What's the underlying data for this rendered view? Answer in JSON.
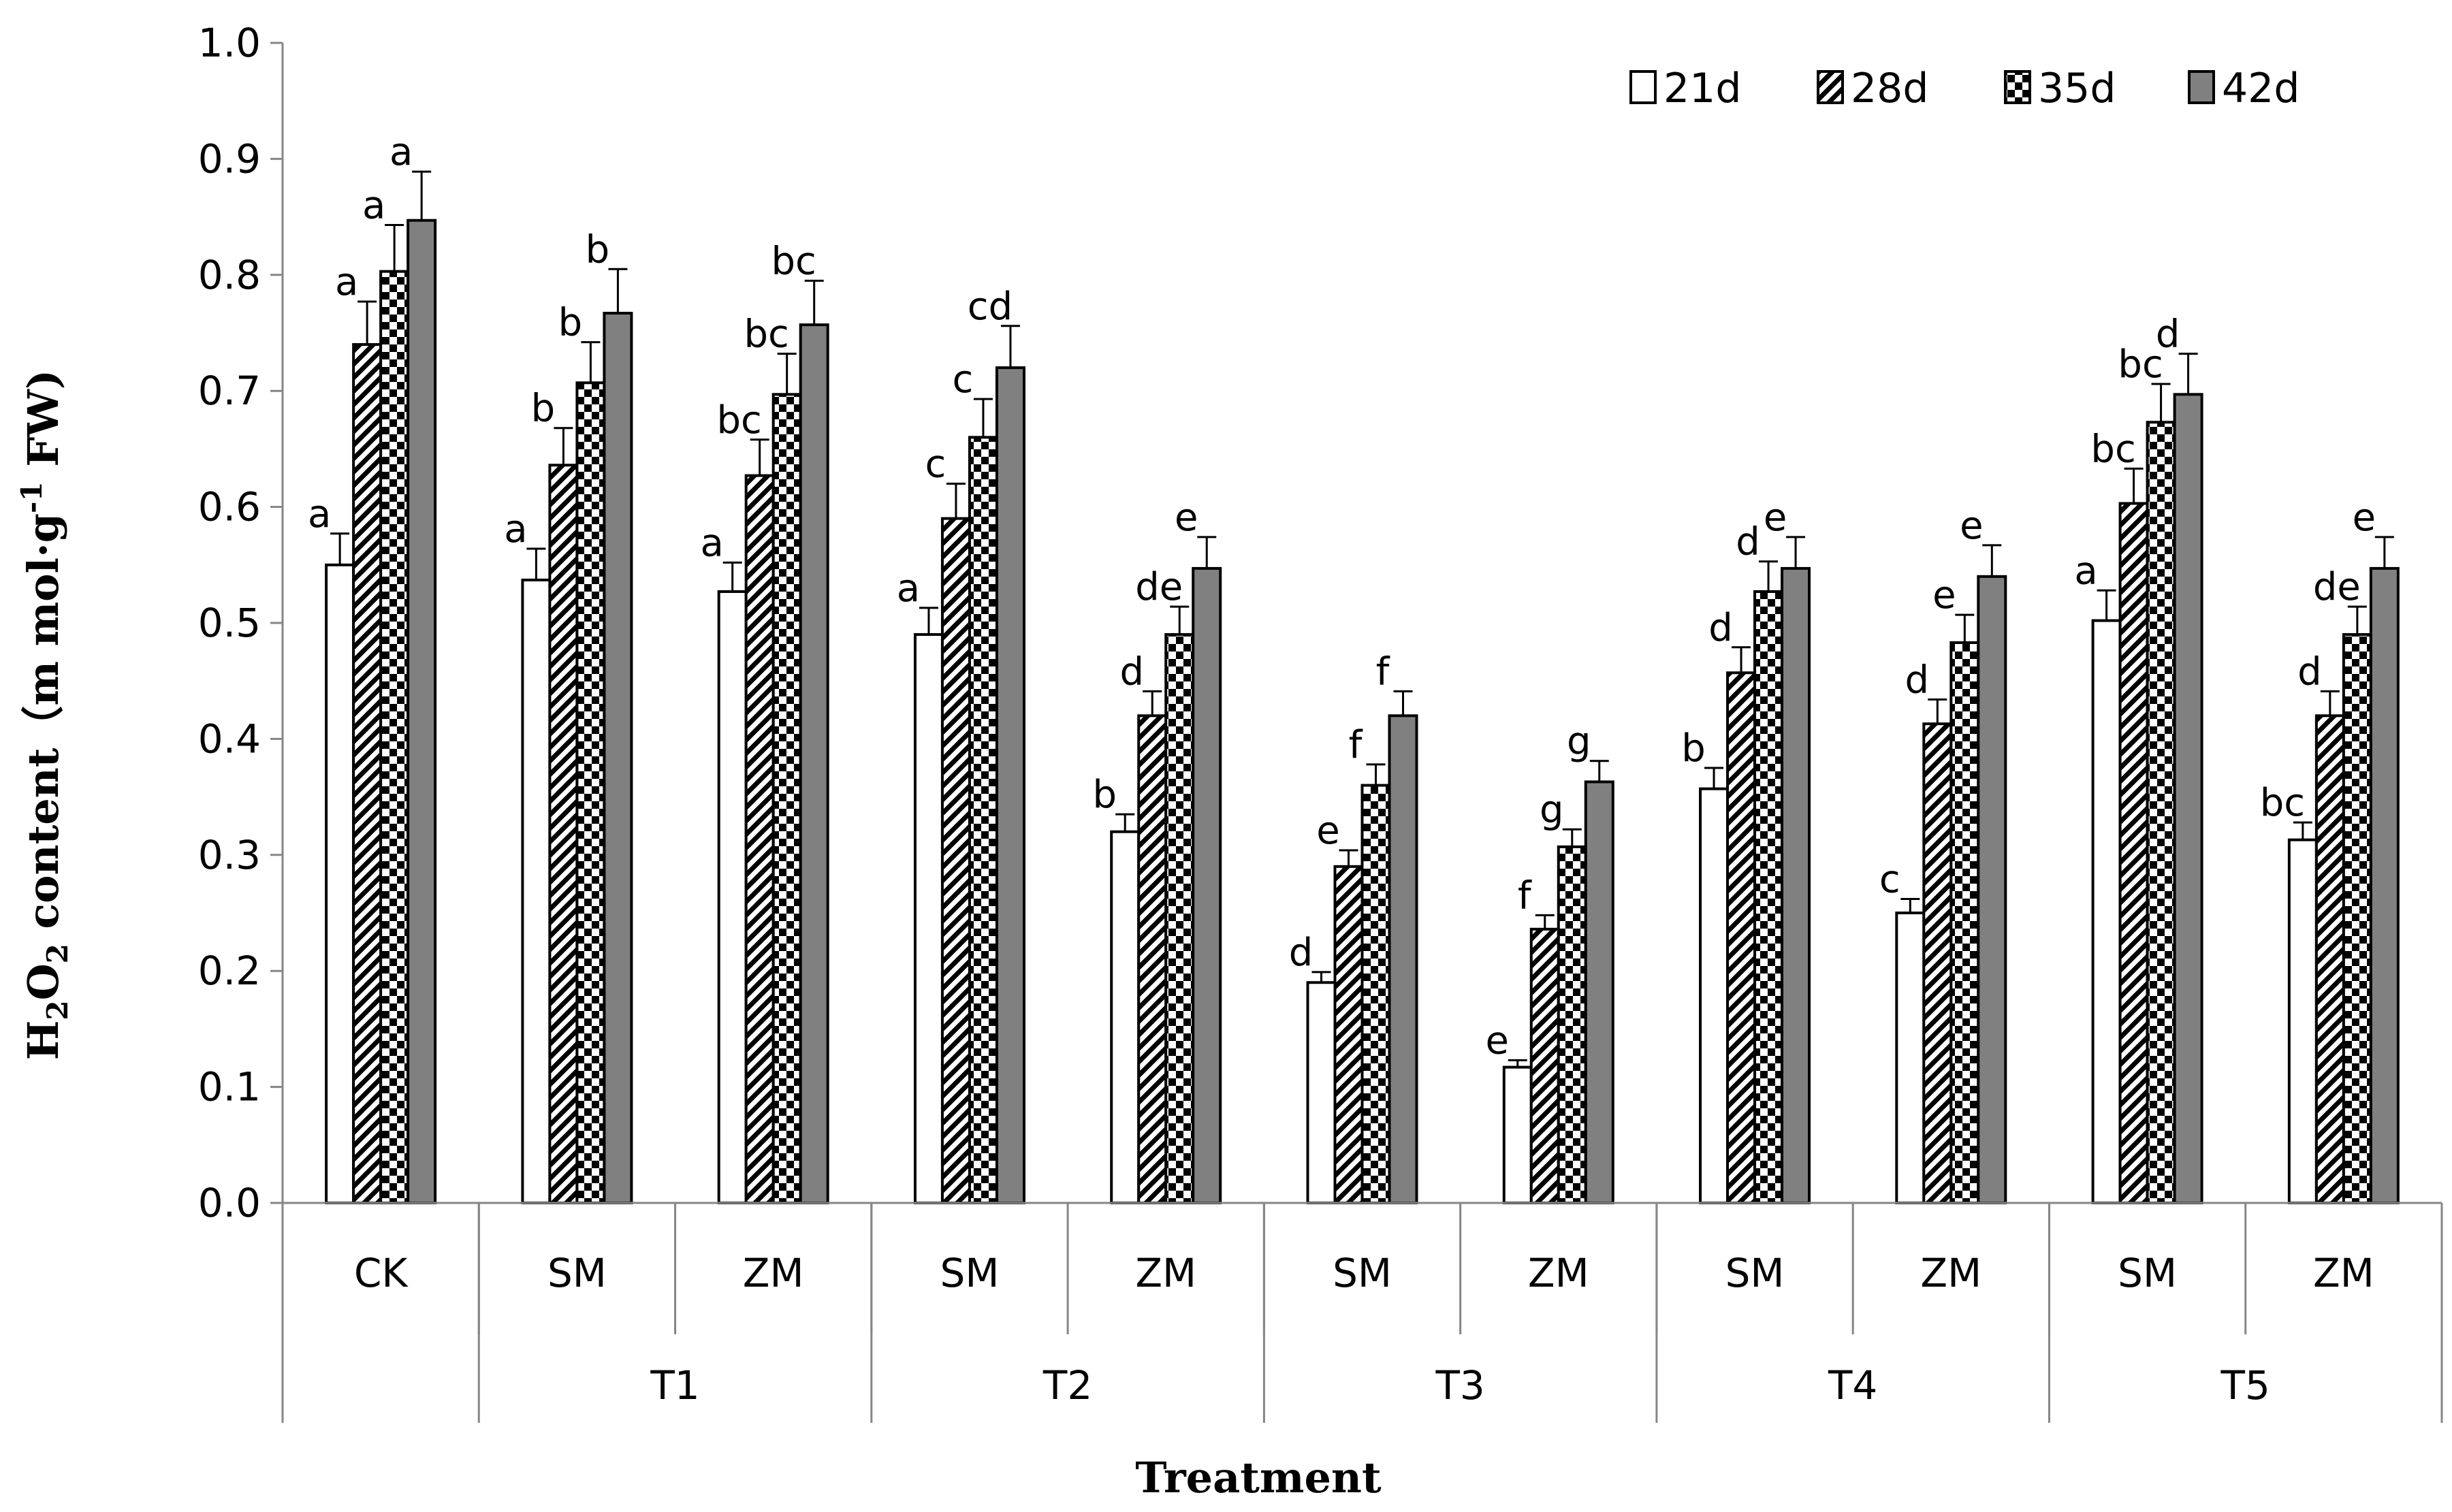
{
  "chart_data": {
    "type": "bar",
    "xlabel": "Treatment",
    "ylabel": {
      "prefix": "H",
      "sub1": "2",
      "mid": "O",
      "sub2": "2",
      "suffix1": " content（m mol·g",
      "sup": "-1",
      "suffix2": " FW)"
    },
    "ylim": [
      0,
      1.0
    ],
    "yticks": [
      "0.0",
      "0.1",
      "0.2",
      "0.3",
      "0.4",
      "0.5",
      "0.6",
      "0.7",
      "0.8",
      "0.9",
      "1.0"
    ],
    "categories": [
      "CK",
      "SM",
      "ZM",
      "SM",
      "ZM",
      "SM",
      "ZM",
      "SM",
      "ZM",
      "SM",
      "ZM"
    ],
    "groups": [
      {
        "label": "",
        "span": 1
      },
      {
        "label": "T1",
        "span": 2
      },
      {
        "label": "T2",
        "span": 2
      },
      {
        "label": "T3",
        "span": 2
      },
      {
        "label": "T4",
        "span": 2
      },
      {
        "label": "T5",
        "span": 2
      }
    ],
    "legend_position": "top-right",
    "series": [
      {
        "name": "21d",
        "pattern": "white",
        "values": [
          0.55,
          0.537,
          0.527,
          0.49,
          0.32,
          0.19,
          0.117,
          0.357,
          0.25,
          0.502,
          0.313
        ],
        "errors": [
          0.027,
          0.027,
          0.025,
          0.023,
          0.015,
          0.009,
          0.006,
          0.018,
          0.012,
          0.026,
          0.015
        ],
        "letters": [
          "a",
          "a",
          "a",
          "a",
          "b",
          "d",
          "e",
          "b",
          "c",
          "a",
          "bc"
        ]
      },
      {
        "name": "28d",
        "pattern": "diagonal",
        "values": [
          0.74,
          0.636,
          0.627,
          0.59,
          0.42,
          0.29,
          0.236,
          0.457,
          0.413,
          0.603,
          0.42
        ],
        "errors": [
          0.037,
          0.032,
          0.031,
          0.03,
          0.021,
          0.014,
          0.012,
          0.022,
          0.021,
          0.03,
          0.021
        ],
        "letters": [
          "a",
          "b",
          "bc",
          "c",
          "d",
          "e",
          "f",
          "d",
          "d",
          "bc",
          "d"
        ]
      },
      {
        "name": "35d",
        "pattern": "checker",
        "values": [
          0.803,
          0.707,
          0.697,
          0.66,
          0.49,
          0.36,
          0.307,
          0.527,
          0.483,
          0.673,
          0.49
        ],
        "errors": [
          0.04,
          0.035,
          0.035,
          0.033,
          0.024,
          0.018,
          0.015,
          0.026,
          0.024,
          0.033,
          0.024
        ],
        "letters": [
          "a",
          "b",
          "bc",
          "c",
          "de",
          "f",
          "g",
          "d",
          "e",
          "bc",
          "de"
        ]
      },
      {
        "name": "42d",
        "pattern": "gray",
        "values": [
          0.847,
          0.767,
          0.757,
          0.72,
          0.547,
          0.42,
          0.363,
          0.547,
          0.54,
          0.697,
          0.547
        ],
        "errors": [
          0.042,
          0.038,
          0.038,
          0.036,
          0.027,
          0.021,
          0.018,
          0.027,
          0.027,
          0.035,
          0.027
        ],
        "letters": [
          "a",
          "b",
          "bc",
          "cd",
          "e",
          "f",
          "g",
          "e",
          "e",
          "d",
          "e"
        ]
      }
    ],
    "colors": {
      "gray_fill": "#808080",
      "outline": "#000000",
      "axis": "#868686"
    }
  }
}
